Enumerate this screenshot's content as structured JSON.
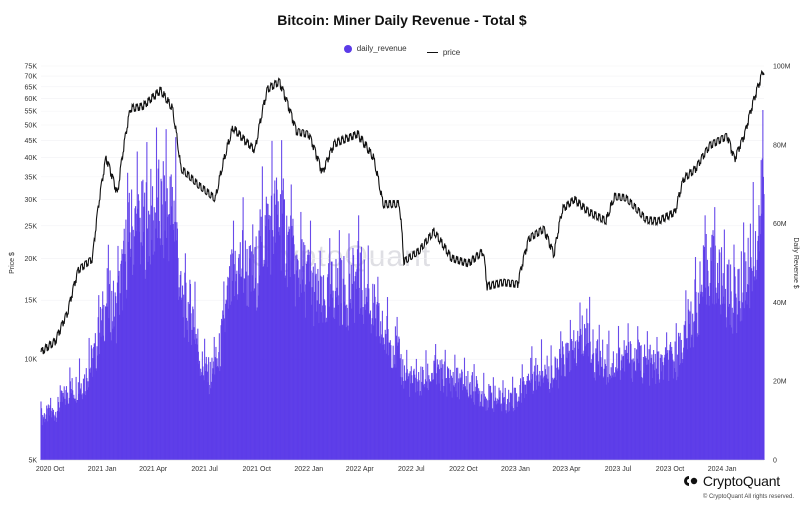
{
  "chart_data": {
    "type": "bar+line",
    "title": "Bitcoin: Miner Daily Revenue - Total $",
    "legend": {
      "position": "top-center",
      "items": [
        "daily_revenue",
        "price"
      ]
    },
    "series": [
      {
        "name": "daily_revenue",
        "type": "bar",
        "axis": "right",
        "color": "#5B3BE8"
      },
      {
        "name": "price",
        "type": "line",
        "axis": "left",
        "color": "#111111"
      }
    ],
    "x_range": [
      "2020-09-15",
      "2024-03-15"
    ],
    "x_tick_labels": [
      "2020 Oct",
      "2021 Jan",
      "2021 Apr",
      "2021 Jul",
      "2021 Oct",
      "2022 Jan",
      "2022 Apr",
      "2022 Jul",
      "2022 Oct",
      "2023 Jan",
      "2023 Apr",
      "2023 Jul",
      "2023 Oct",
      "2024 Jan"
    ],
    "x_tick_dates": [
      "2020-10-01",
      "2021-01-01",
      "2021-04-01",
      "2021-07-01",
      "2021-10-01",
      "2022-01-01",
      "2022-04-01",
      "2022-07-01",
      "2022-10-01",
      "2023-01-01",
      "2023-04-01",
      "2023-07-01",
      "2023-10-01",
      "2024-01-01"
    ],
    "y_left": {
      "label": "Price $",
      "scale": "log",
      "range": [
        5000,
        75000
      ],
      "ticks": [
        5000,
        10000,
        15000,
        20000,
        25000,
        30000,
        35000,
        40000,
        45000,
        50000,
        55000,
        60000,
        65000,
        70000,
        75000
      ],
      "tick_labels": [
        "5K",
        "10K",
        "15K",
        "20K",
        "25K",
        "30K",
        "35K",
        "40K",
        "45K",
        "50K",
        "55K",
        "60K",
        "65K",
        "70K",
        "75K"
      ]
    },
    "y_right": {
      "label": "Daily Revenue $",
      "scale": "linear",
      "range": [
        0,
        100000000
      ],
      "ticks": [
        0,
        20000000,
        40000000,
        60000000,
        80000000,
        100000000
      ],
      "tick_labels": [
        "0",
        "20M",
        "40M",
        "60M",
        "80M",
        "100M"
      ]
    },
    "revenue_keypoints": [
      [
        "2020-09-15",
        11000000
      ],
      [
        "2020-10-10",
        12000000
      ],
      [
        "2020-11-01",
        17000000
      ],
      [
        "2020-12-01",
        20000000
      ],
      [
        "2020-12-20",
        27000000
      ],
      [
        "2021-01-10",
        41000000
      ],
      [
        "2021-01-25",
        37000000
      ],
      [
        "2021-02-10",
        50000000
      ],
      [
        "2021-02-20",
        58000000
      ],
      [
        "2021-03-10",
        58000000
      ],
      [
        "2021-04-10",
        63000000
      ],
      [
        "2021-04-20",
        62000000
      ],
      [
        "2021-05-10",
        63000000
      ],
      [
        "2021-05-20",
        40000000
      ],
      [
        "2021-06-10",
        37000000
      ],
      [
        "2021-06-25",
        24000000
      ],
      [
        "2021-07-10",
        21000000
      ],
      [
        "2021-07-25",
        25000000
      ],
      [
        "2021-08-15",
        43000000
      ],
      [
        "2021-09-05",
        50000000
      ],
      [
        "2021-09-25",
        44000000
      ],
      [
        "2021-10-15",
        58000000
      ],
      [
        "2021-11-10",
        62000000
      ],
      [
        "2021-11-25",
        55000000
      ],
      [
        "2021-12-10",
        47000000
      ],
      [
        "2022-01-01",
        46000000
      ],
      [
        "2022-01-25",
        38000000
      ],
      [
        "2022-02-15",
        44000000
      ],
      [
        "2022-03-10",
        42000000
      ],
      [
        "2022-03-30",
        46000000
      ],
      [
        "2022-04-20",
        39000000
      ],
      [
        "2022-05-10",
        32000000
      ],
      [
        "2022-06-01",
        29000000
      ],
      [
        "2022-06-20",
        21000000
      ],
      [
        "2022-07-10",
        19000000
      ],
      [
        "2022-08-10",
        22000000
      ],
      [
        "2022-09-10",
        20000000
      ],
      [
        "2022-10-10",
        19000000
      ],
      [
        "2022-11-10",
        16000000
      ],
      [
        "2022-12-10",
        15000000
      ],
      [
        "2023-01-05",
        16000000
      ],
      [
        "2023-01-25",
        21000000
      ],
      [
        "2023-02-20",
        23000000
      ],
      [
        "2023-03-10",
        21000000
      ],
      [
        "2023-03-25",
        25000000
      ],
      [
        "2023-04-15",
        27000000
      ],
      [
        "2023-05-08",
        33000000
      ],
      [
        "2023-05-20",
        26000000
      ],
      [
        "2023-06-20",
        24000000
      ],
      [
        "2023-07-10",
        26000000
      ],
      [
        "2023-08-10",
        25000000
      ],
      [
        "2023-09-10",
        23000000
      ],
      [
        "2023-10-10",
        25000000
      ],
      [
        "2023-11-01",
        33000000
      ],
      [
        "2023-11-20",
        40000000
      ],
      [
        "2023-12-10",
        50000000
      ],
      [
        "2024-01-01",
        44000000
      ],
      [
        "2024-01-25",
        40000000
      ],
      [
        "2024-02-15",
        47000000
      ],
      [
        "2024-03-05",
        57000000
      ],
      [
        "2024-03-15",
        68000000
      ]
    ],
    "price_keypoints": [
      [
        "2020-09-15",
        10500
      ],
      [
        "2020-10-10",
        11300
      ],
      [
        "2020-11-01",
        13800
      ],
      [
        "2020-11-20",
        18500
      ],
      [
        "2020-12-15",
        20000
      ],
      [
        "2021-01-08",
        40000
      ],
      [
        "2021-01-28",
        31000
      ],
      [
        "2021-02-20",
        56000
      ],
      [
        "2021-03-15",
        57000
      ],
      [
        "2021-04-14",
        63500
      ],
      [
        "2021-05-05",
        56000
      ],
      [
        "2021-05-20",
        37000
      ],
      [
        "2021-06-20",
        33000
      ],
      [
        "2021-07-20",
        30000
      ],
      [
        "2021-08-20",
        49000
      ],
      [
        "2021-09-10",
        45000
      ],
      [
        "2021-09-28",
        42000
      ],
      [
        "2021-10-20",
        64000
      ],
      [
        "2021-11-10",
        67500
      ],
      [
        "2021-12-10",
        48000
      ],
      [
        "2022-01-01",
        47000
      ],
      [
        "2022-01-25",
        36000
      ],
      [
        "2022-02-15",
        44000
      ],
      [
        "2022-03-28",
        47000
      ],
      [
        "2022-04-25",
        40000
      ],
      [
        "2022-05-12",
        29000
      ],
      [
        "2022-06-10",
        29000
      ],
      [
        "2022-06-18",
        19500
      ],
      [
        "2022-07-15",
        21000
      ],
      [
        "2022-08-10",
        24000
      ],
      [
        "2022-09-10",
        20000
      ],
      [
        "2022-10-10",
        19300
      ],
      [
        "2022-11-05",
        21000
      ],
      [
        "2022-11-12",
        16500
      ],
      [
        "2022-12-10",
        17000
      ],
      [
        "2023-01-05",
        16800
      ],
      [
        "2023-01-25",
        23000
      ],
      [
        "2023-02-20",
        24500
      ],
      [
        "2023-03-10",
        20500
      ],
      [
        "2023-03-25",
        28000
      ],
      [
        "2023-04-15",
        30000
      ],
      [
        "2023-05-10",
        27500
      ],
      [
        "2023-06-10",
        25800
      ],
      [
        "2023-06-25",
        30500
      ],
      [
        "2023-07-15",
        30200
      ],
      [
        "2023-08-20",
        26000
      ],
      [
        "2023-09-10",
        25800
      ],
      [
        "2023-10-10",
        27500
      ],
      [
        "2023-10-25",
        34500
      ],
      [
        "2023-11-15",
        37000
      ],
      [
        "2023-12-10",
        43500
      ],
      [
        "2024-01-10",
        46500
      ],
      [
        "2024-01-23",
        39500
      ],
      [
        "2024-02-10",
        47000
      ],
      [
        "2024-02-28",
        61000
      ],
      [
        "2024-03-08",
        68000
      ],
      [
        "2024-03-13",
        72500
      ]
    ]
  },
  "brand": {
    "name": "CryptoQuant",
    "copyright": "© CryptoQuant All rights reserved.",
    "watermark": "CryptoQuant"
  },
  "colors": {
    "revenue": "#5B3BE8",
    "price": "#111111",
    "axis_text": "#333333"
  }
}
